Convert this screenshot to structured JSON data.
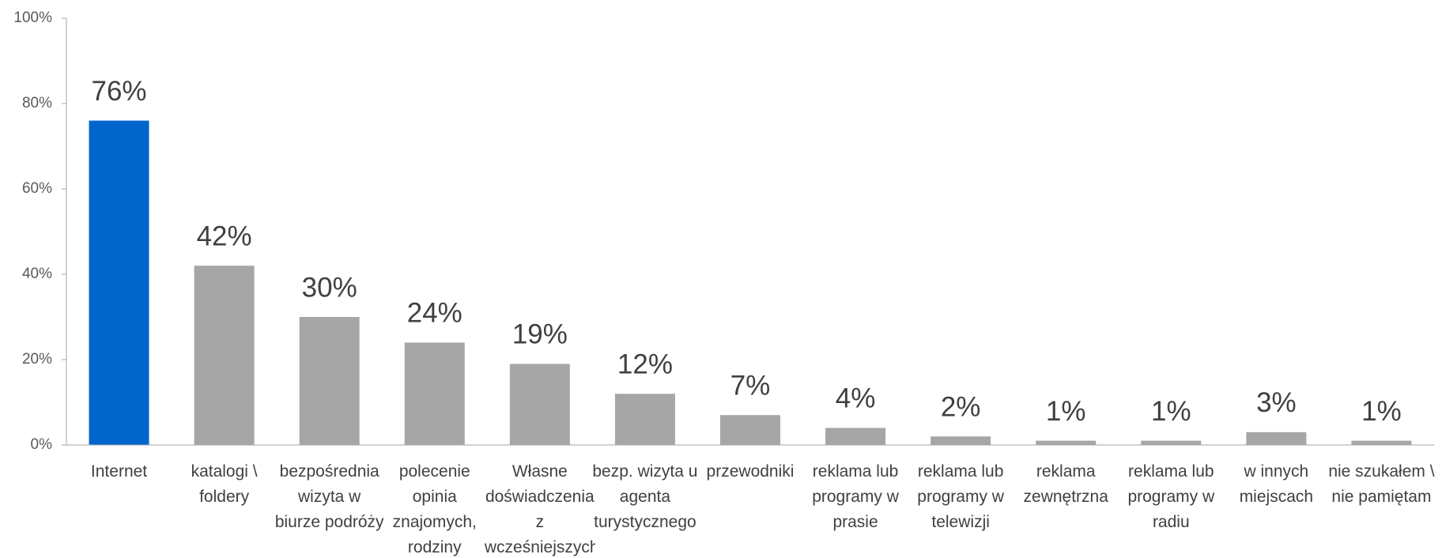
{
  "chart_data": {
    "type": "bar",
    "categories": [
      "Internet",
      "katalogi \\ foldery",
      "bezpośrednia wizyta w biurze podróży",
      "polecenie opinia znajomych, rodziny",
      "Własne doświadczenia z wcześniejszych pobytów",
      "bezp. wizyta u agenta turystycznego",
      "przewodniki",
      "reklama lub programy w prasie",
      "reklama lub programy w telewizji",
      "reklama zewnętrzna",
      "reklama lub programy w radiu",
      "w innych miejscach",
      "nie szukałem \\ nie pamiętam"
    ],
    "values": [
      76,
      42,
      30,
      24,
      19,
      12,
      7,
      4,
      2,
      1,
      1,
      3,
      1
    ],
    "value_labels": [
      "76%",
      "42%",
      "30%",
      "24%",
      "19%",
      "12%",
      "7%",
      "4%",
      "2%",
      "1%",
      "1%",
      "3%",
      "1%"
    ],
    "colors": [
      "#0066cc",
      "#a6a6a6",
      "#a6a6a6",
      "#a6a6a6",
      "#a6a6a6",
      "#a6a6a6",
      "#a6a6a6",
      "#a6a6a6",
      "#a6a6a6",
      "#a6a6a6",
      "#a6a6a6",
      "#a6a6a6",
      "#a6a6a6"
    ],
    "ylim": [
      0,
      100
    ],
    "yticks": [
      {
        "value": 0,
        "label": "0%"
      },
      {
        "value": 20,
        "label": "20%"
      },
      {
        "value": 40,
        "label": "40%"
      },
      {
        "value": 60,
        "label": "60%"
      },
      {
        "value": 80,
        "label": "80%"
      },
      {
        "value": 100,
        "label": "100%"
      }
    ],
    "grid": false
  }
}
